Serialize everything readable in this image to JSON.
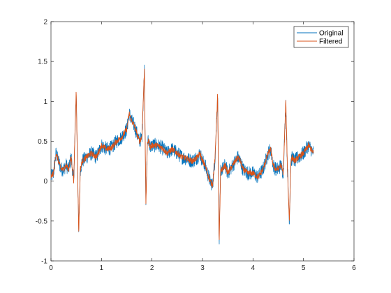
{
  "chart_data": {
    "type": "line",
    "title": "",
    "xlabel": "",
    "ylabel": "",
    "xlim": [
      0,
      6
    ],
    "ylim": [
      -1,
      2
    ],
    "xticks": [
      "0",
      "1",
      "2",
      "3",
      "4",
      "5",
      "6"
    ],
    "yticks": [
      "-1",
      "-0.5",
      "0",
      "0.5",
      "1",
      "1.5",
      "2"
    ],
    "grid": false,
    "legend_position": "top-right",
    "series": [
      {
        "name": "Original",
        "color": "#0072BD",
        "noise_amplitude": 0.09
      },
      {
        "name": "Filtered",
        "color": "#D95319",
        "noise_amplitude": 0.035
      }
    ],
    "envelope": {
      "x": [
        0,
        0.05,
        0.1,
        0.15,
        0.2,
        0.25,
        0.3,
        0.35,
        0.4,
        0.45,
        0.5,
        0.52,
        0.55,
        0.58,
        0.62,
        0.7,
        0.8,
        0.9,
        1.0,
        1.1,
        1.2,
        1.3,
        1.4,
        1.5,
        1.55,
        1.6,
        1.65,
        1.7,
        1.75,
        1.8,
        1.85,
        1.88,
        1.91,
        1.94,
        1.97,
        2.0,
        2.1,
        2.2,
        2.3,
        2.4,
        2.5,
        2.6,
        2.7,
        2.8,
        2.9,
        2.95,
        3.0,
        3.05,
        3.1,
        3.15,
        3.2,
        3.25,
        3.3,
        3.33,
        3.36,
        3.4,
        3.45,
        3.5,
        3.6,
        3.7,
        3.75,
        3.8,
        3.9,
        4.0,
        4.1,
        4.2,
        4.3,
        4.35,
        4.4,
        4.45,
        4.5,
        4.55,
        4.6,
        4.65,
        4.68,
        4.72,
        4.75,
        4.78,
        4.82,
        4.9,
        5.0,
        5.1,
        5.15,
        5.2
      ],
      "y": [
        0.05,
        0.1,
        0.35,
        0.25,
        0.15,
        0.15,
        0.2,
        0.15,
        0.3,
        0.0,
        1.15,
        0.4,
        -0.65,
        0.15,
        0.25,
        0.3,
        0.35,
        0.3,
        0.45,
        0.4,
        0.42,
        0.5,
        0.55,
        0.65,
        0.85,
        0.75,
        0.7,
        0.6,
        0.5,
        0.55,
        1.4,
        -0.3,
        0.5,
        0.5,
        0.42,
        0.45,
        0.45,
        0.42,
        0.35,
        0.4,
        0.35,
        0.3,
        0.28,
        0.25,
        0.3,
        0.35,
        0.25,
        0.2,
        0.1,
        0.0,
        -0.05,
        0.3,
        1.1,
        -0.8,
        0.15,
        0.15,
        0.2,
        0.1,
        0.2,
        0.3,
        0.25,
        0.15,
        0.1,
        0.1,
        0.05,
        0.15,
        0.35,
        0.4,
        0.2,
        0.15,
        0.15,
        0.2,
        0.1,
        1.0,
        0.2,
        -0.5,
        0.25,
        0.3,
        0.25,
        0.3,
        0.35,
        0.45,
        0.4,
        0.35
      ]
    }
  }
}
